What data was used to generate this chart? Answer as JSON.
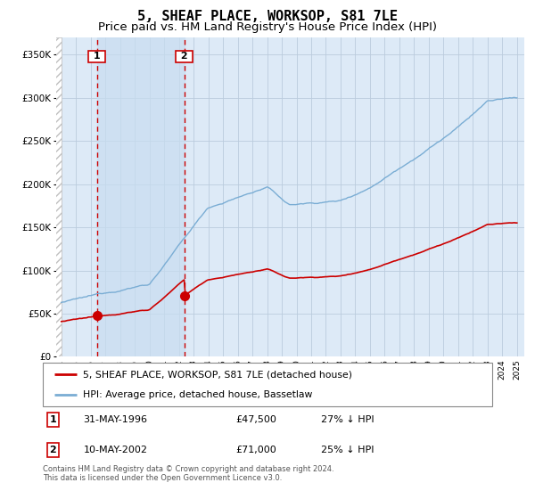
{
  "title": "5, SHEAF PLACE, WORKSOP, S81 7LE",
  "subtitle": "Price paid vs. HM Land Registry's House Price Index (HPI)",
  "ylim": [
    0,
    370000
  ],
  "yticks": [
    0,
    50000,
    100000,
    150000,
    200000,
    250000,
    300000,
    350000
  ],
  "ytick_labels": [
    "£0",
    "£50K",
    "£100K",
    "£150K",
    "£200K",
    "£250K",
    "£300K",
    "£350K"
  ],
  "hpi_color": "#7aadd4",
  "price_color": "#cc0000",
  "background_color": "#ddeaf7",
  "shade_between_color": "#ddeaf7",
  "grid_color": "#bbccdd",
  "sale1_date": 1996.42,
  "sale1_price": 47500,
  "sale2_date": 2002.37,
  "sale2_price": 71000,
  "legend_line1": "5, SHEAF PLACE, WORKSOP, S81 7LE (detached house)",
  "legend_line2": "HPI: Average price, detached house, Bassetlaw",
  "table_row1": [
    "1",
    "31-MAY-1996",
    "£47,500",
    "27% ↓ HPI"
  ],
  "table_row2": [
    "2",
    "10-MAY-2002",
    "£71,000",
    "25% ↓ HPI"
  ],
  "footnote": "Contains HM Land Registry data © Crown copyright and database right 2024.\nThis data is licensed under the Open Government Licence v3.0.",
  "title_fontsize": 11,
  "subtitle_fontsize": 9.5,
  "tick_fontsize": 7.5
}
